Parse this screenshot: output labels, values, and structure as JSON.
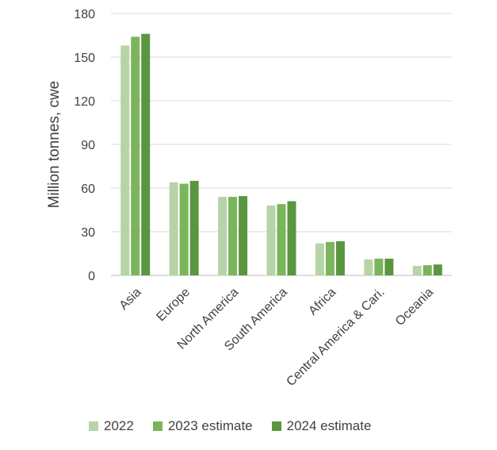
{
  "chart_data": {
    "type": "bar",
    "title": "",
    "xlabel": "",
    "ylabel": "Million tonnes, cwe",
    "ylim": [
      0,
      180
    ],
    "yticks": [
      0,
      30,
      60,
      90,
      120,
      150,
      180
    ],
    "grid": true,
    "legend_position": "bottom",
    "categories": [
      "Asia",
      "Europe",
      "North America",
      "South America",
      "Africa",
      "Central America & Cari.",
      "Oceania"
    ],
    "series": [
      {
        "name": "2022",
        "color": "#b6d4a8",
        "values": [
          158,
          64,
          54,
          48,
          22,
          11,
          6.5
        ]
      },
      {
        "name": "2023 estimate",
        "color": "#7ab55c",
        "values": [
          164,
          63,
          54,
          49,
          23,
          11.5,
          7
        ]
      },
      {
        "name": "2024 estimate",
        "color": "#5a9640",
        "values": [
          166,
          65,
          54.5,
          51,
          23.5,
          11.5,
          7.5
        ]
      }
    ]
  }
}
